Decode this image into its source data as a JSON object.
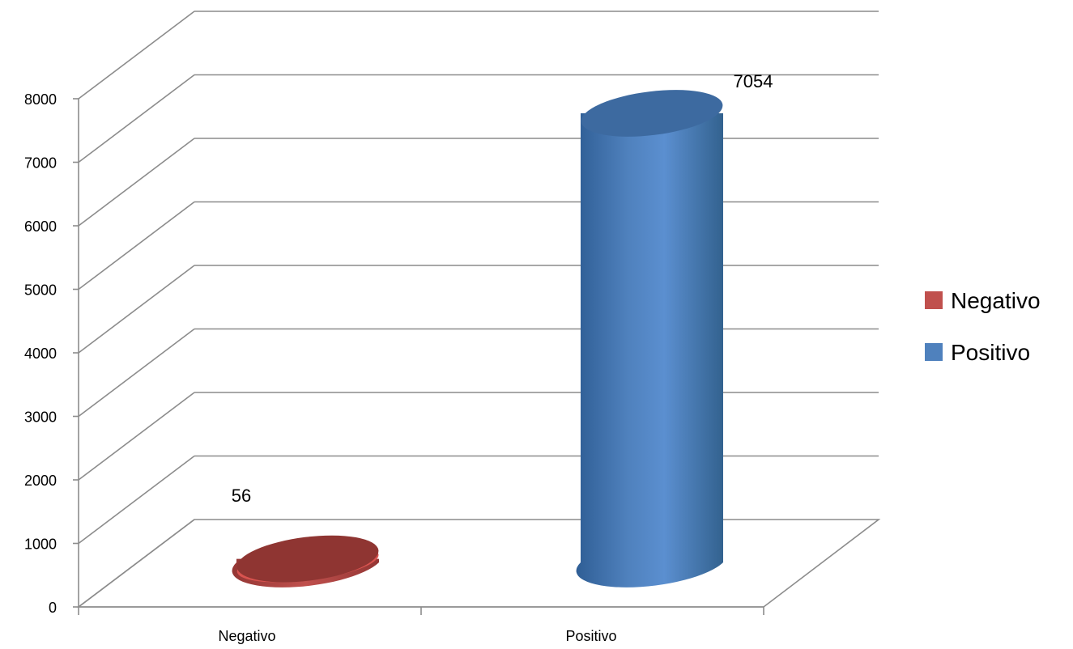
{
  "chart_data": {
    "type": "bar",
    "style": "3d-cylinder",
    "categories": [
      "Negativo",
      "Positivo"
    ],
    "series": [
      {
        "name": "Negativo",
        "values": [
          56,
          null
        ],
        "color": "#c0504d"
      },
      {
        "name": "Positivo",
        "values": [
          null,
          7054
        ],
        "color": "#4f81bd"
      }
    ],
    "data_labels": [
      "56",
      "7054"
    ],
    "y_ticks": [
      "0",
      "1000",
      "2000",
      "3000",
      "4000",
      "5000",
      "6000",
      "7000",
      "8000"
    ],
    "ylim": [
      0,
      8000
    ],
    "grid": true,
    "legend": "right"
  }
}
